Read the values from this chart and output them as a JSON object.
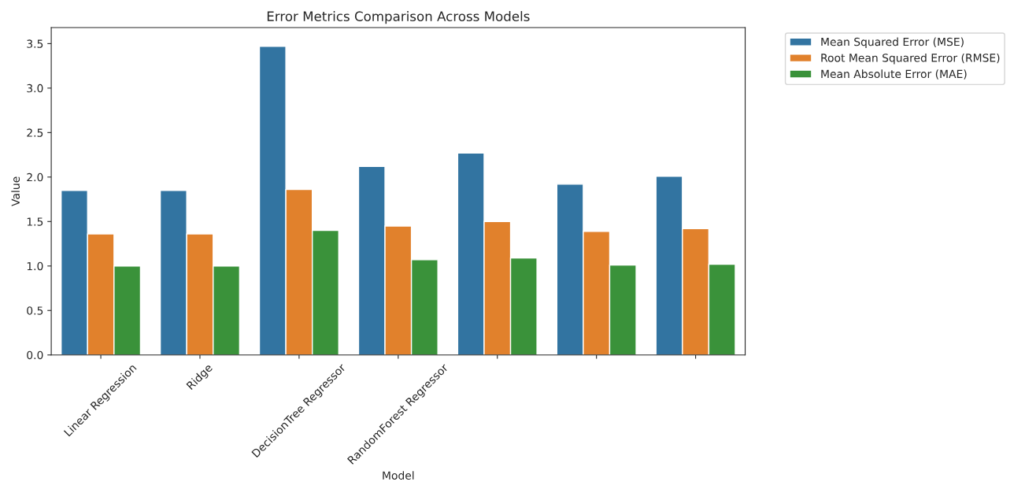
{
  "chart_data": {
    "type": "bar",
    "title": "Error Metrics Comparison Across Models",
    "xlabel": "Model",
    "ylabel": "Value",
    "categories": [
      "Linear Regression",
      "Ridge",
      "DecisionTree Regressor",
      "RandomForest Regressor",
      null,
      null,
      null
    ],
    "series": [
      {
        "name": "Mean Squared Error (MSE)",
        "color": "#3274a1",
        "values": [
          1.85,
          1.85,
          3.47,
          2.12,
          2.27,
          1.92,
          2.01
        ]
      },
      {
        "name": "Root Mean Squared Error (RMSE)",
        "color": "#e1812c",
        "values": [
          1.36,
          1.36,
          1.86,
          1.45,
          1.5,
          1.39,
          1.42
        ]
      },
      {
        "name": "Mean Absolute Error (MAE)",
        "color": "#3a923a",
        "values": [
          1.0,
          1.0,
          1.4,
          1.07,
          1.09,
          1.01,
          1.02
        ]
      }
    ],
    "ylim": [
      0,
      3.68
    ],
    "yticks": [
      {
        "value": 0,
        "label": "0.0"
      },
      {
        "value": 0.5,
        "label": "0.5"
      },
      {
        "value": 1,
        "label": "1.0"
      },
      {
        "value": 1.5,
        "label": "1.5"
      },
      {
        "value": 2,
        "label": "2.0"
      },
      {
        "value": 2.5,
        "label": "2.5"
      },
      {
        "value": 3,
        "label": "3.0"
      },
      {
        "value": 3.5,
        "label": "3.5"
      }
    ],
    "legend": "top right",
    "grid": false
  }
}
